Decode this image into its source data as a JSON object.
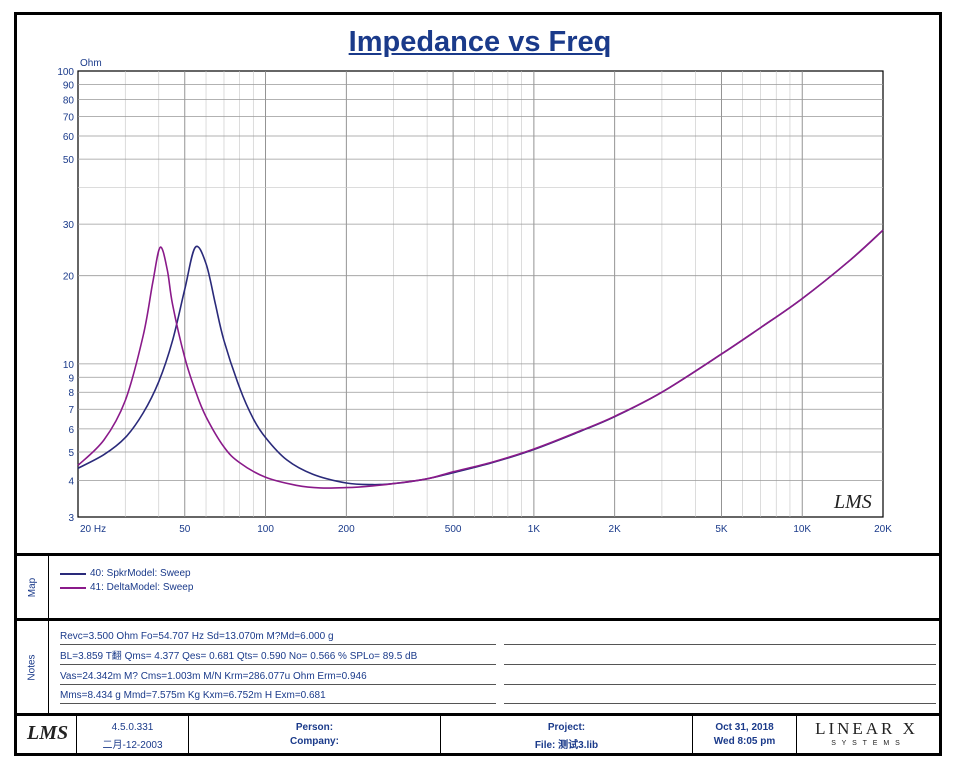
{
  "chart_data": {
    "type": "line",
    "title": "Impedance vs Freq",
    "ylabel": "Ohm",
    "x_scale": "log",
    "y_scale": "log",
    "xlim": [
      20,
      20000
    ],
    "ylim": [
      3,
      100
    ],
    "x_ticks": [
      {
        "value": 20,
        "label": "20  Hz"
      },
      {
        "value": 50,
        "label": "50"
      },
      {
        "value": 100,
        "label": "100"
      },
      {
        "value": 200,
        "label": "200"
      },
      {
        "value": 500,
        "label": "500"
      },
      {
        "value": 1000,
        "label": "1K"
      },
      {
        "value": 2000,
        "label": "2K"
      },
      {
        "value": 5000,
        "label": "5K"
      },
      {
        "value": 10000,
        "label": "10K"
      },
      {
        "value": 20000,
        "label": "20K"
      }
    ],
    "y_ticks": [
      {
        "value": 3,
        "label": "3"
      },
      {
        "value": 4,
        "label": "4"
      },
      {
        "value": 5,
        "label": "5"
      },
      {
        "value": 6,
        "label": "6"
      },
      {
        "value": 7,
        "label": "7"
      },
      {
        "value": 8,
        "label": "8"
      },
      {
        "value": 9,
        "label": "9"
      },
      {
        "value": 10,
        "label": "10"
      },
      {
        "value": 20,
        "label": "20"
      },
      {
        "value": 30,
        "label": "30"
      },
      {
        "value": 50,
        "label": "50"
      },
      {
        "value": 60,
        "label": "60"
      },
      {
        "value": 70,
        "label": "70"
      },
      {
        "value": 80,
        "label": "80"
      },
      {
        "value": 90,
        "label": "90"
      },
      {
        "value": 100,
        "label": "100"
      }
    ],
    "grid": true,
    "watermark": "LMS",
    "series": [
      {
        "name": "40: SpkrModel: Sweep",
        "color": "#2a2a7a",
        "points": [
          [
            20,
            4.4
          ],
          [
            25,
            4.9
          ],
          [
            30,
            5.6
          ],
          [
            35,
            6.8
          ],
          [
            40,
            8.7
          ],
          [
            45,
            12.0
          ],
          [
            50,
            18.0
          ],
          [
            54.7,
            25.0
          ],
          [
            60,
            22.0
          ],
          [
            65,
            16.0
          ],
          [
            70,
            12.0
          ],
          [
            80,
            8.3
          ],
          [
            90,
            6.5
          ],
          [
            100,
            5.6
          ],
          [
            120,
            4.7
          ],
          [
            150,
            4.2
          ],
          [
            200,
            3.92
          ],
          [
            250,
            3.87
          ],
          [
            300,
            3.9
          ],
          [
            400,
            4.05
          ],
          [
            500,
            4.25
          ],
          [
            700,
            4.6
          ],
          [
            1000,
            5.1
          ],
          [
            1500,
            5.9
          ],
          [
            2000,
            6.6
          ],
          [
            3000,
            8.0
          ],
          [
            5000,
            10.8
          ],
          [
            7000,
            13.3
          ],
          [
            10000,
            16.7
          ],
          [
            15000,
            22.5
          ],
          [
            20000,
            28.6
          ]
        ]
      },
      {
        "name": "41: DeltaModel: Sweep",
        "color": "#8a1a8a",
        "points": [
          [
            20,
            4.5
          ],
          [
            25,
            5.5
          ],
          [
            30,
            7.5
          ],
          [
            35,
            12.5
          ],
          [
            38,
            19.0
          ],
          [
            40.5,
            25.0
          ],
          [
            43,
            21.0
          ],
          [
            45,
            16.0
          ],
          [
            50,
            10.5
          ],
          [
            55,
            8.0
          ],
          [
            60,
            6.6
          ],
          [
            70,
            5.2
          ],
          [
            80,
            4.6
          ],
          [
            100,
            4.1
          ],
          [
            130,
            3.85
          ],
          [
            160,
            3.77
          ],
          [
            200,
            3.78
          ],
          [
            250,
            3.83
          ],
          [
            300,
            3.9
          ],
          [
            400,
            4.05
          ],
          [
            500,
            4.28
          ],
          [
            700,
            4.62
          ],
          [
            1000,
            5.12
          ],
          [
            1500,
            5.92
          ],
          [
            2000,
            6.62
          ],
          [
            3000,
            8.0
          ],
          [
            5000,
            10.8
          ],
          [
            7000,
            13.3
          ],
          [
            10000,
            16.7
          ],
          [
            15000,
            22.5
          ],
          [
            20000,
            28.6
          ]
        ]
      }
    ]
  },
  "legend": {
    "label": "Map",
    "items": [
      {
        "text": "40: SpkrModel: Sweep",
        "color": "#2a2a7a"
      },
      {
        "text": "41: DeltaModel: Sweep",
        "color": "#8a1a8a"
      }
    ]
  },
  "notes": {
    "label": "Notes",
    "lines": [
      "Revc=3.500 Ohm  Fo=54.707 Hz  Sd=13.070m M?Md=6.000 g",
      "BL=3.859 T翻  Qms= 4.377  Qes= 0.681  Qts= 0.590  No= 0.566 %  SPLo= 89.5 dB",
      "Vas=24.342m M? Cms=1.003m M/N  Krm=286.077u Ohm  Erm=0.946",
      "Mms=8.434 g  Mmd=7.575m Kg  Kxm=6.752m H  Exm=0.681"
    ]
  },
  "footer": {
    "logo": "LMS",
    "version": "4.5.0.331",
    "build_date": "二月-12-2003",
    "person_label": "Person:",
    "company_label": "Company:",
    "project_label": "Project:",
    "file_label": "File:  测试3.lib",
    "date": "Oct 31, 2018",
    "time": "Wed  8:05 pm",
    "brand": "LINEAR X",
    "brand_sub": "S Y S T E M S"
  }
}
